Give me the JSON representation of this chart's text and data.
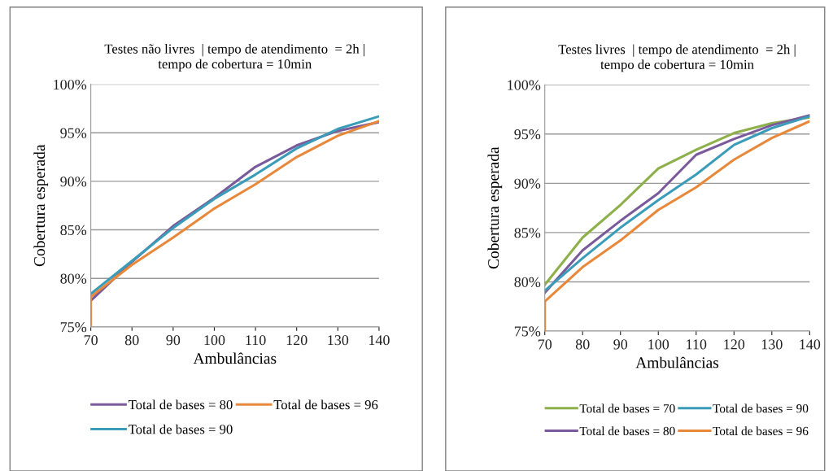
{
  "chart_data": [
    {
      "type": "line",
      "title": "Testes não livres  | tempo de atendimento  = 2h |\ntempo de cobertura = 10min",
      "xlabel": "Ambulâncias",
      "ylabel": "Cobertura esperada",
      "xlim": [
        70,
        140
      ],
      "xticks": [
        70,
        80,
        90,
        100,
        110,
        120,
        130,
        140
      ],
      "ylim": [
        75,
        100
      ],
      "yticks": [
        {
          "value": 75,
          "label": "75%"
        },
        {
          "value": 80,
          "label": "80%"
        },
        {
          "value": 85,
          "label": "85%"
        },
        {
          "value": 90,
          "label": "90%"
        },
        {
          "value": 95,
          "label": "95%"
        },
        {
          "value": 100,
          "label": "100%"
        }
      ],
      "grid": "y",
      "legend": "bottom",
      "marker": "none",
      "line_style": "solid",
      "series": [
        {
          "name": "Total de bases = 80",
          "color": "#7a5a9a",
          "x": [
            70,
            80,
            90,
            100,
            110,
            120,
            130,
            140
          ],
          "values": [
            77.7,
            81.7,
            85.4,
            88.3,
            91.5,
            93.7,
            95.2,
            96.1
          ]
        },
        {
          "name": "Total de bases = 90",
          "color": "#3a9cb8",
          "x": [
            70,
            80,
            90,
            100,
            110,
            120,
            130,
            140
          ],
          "values": [
            78.4,
            81.8,
            85.2,
            88.2,
            90.7,
            93.4,
            95.4,
            96.7
          ]
        },
        {
          "name": "Total de bases = 96",
          "color": "#e8883a",
          "x": [
            70,
            70,
            80,
            90,
            100,
            110,
            120,
            130,
            140
          ],
          "values": [
            75,
            78.1,
            81.4,
            84.2,
            87.2,
            89.7,
            92.5,
            94.7,
            96.2
          ]
        }
      ]
    },
    {
      "type": "line",
      "title": "Testes livres  | tempo de atendimento  = 2h |\ntempo de cobertura = 10min",
      "xlabel": "Ambulâncias",
      "ylabel": "Cobertura esperada",
      "xlim": [
        70,
        140
      ],
      "xticks": [
        70,
        80,
        90,
        100,
        110,
        120,
        130,
        140
      ],
      "ylim": [
        75,
        100
      ],
      "yticks": [
        {
          "value": 75,
          "label": "75%"
        },
        {
          "value": 80,
          "label": "80%"
        },
        {
          "value": 85,
          "label": "85%"
        },
        {
          "value": 90,
          "label": "90%"
        },
        {
          "value": 95,
          "label": "95%"
        },
        {
          "value": 100,
          "label": "100%"
        }
      ],
      "grid": "y",
      "legend": "bottom",
      "marker": "none",
      "line_style": "solid",
      "series": [
        {
          "name": "Total de bases = 70",
          "color": "#8db04a",
          "x": [
            70,
            80,
            90,
            100,
            110,
            120,
            130,
            140
          ],
          "values": [
            79.7,
            84.5,
            87.8,
            91.5,
            93.4,
            95.1,
            96.1,
            96.7
          ]
        },
        {
          "name": "Total de bases = 80",
          "color": "#7a5a9a",
          "x": [
            70,
            80,
            90,
            100,
            110,
            120,
            130,
            140
          ],
          "values": [
            78.9,
            83.2,
            86.2,
            89.0,
            92.9,
            94.5,
            95.9,
            96.9
          ]
        },
        {
          "name": "Total de bases = 90",
          "color": "#3a9cb8",
          "x": [
            70,
            80,
            90,
            100,
            110,
            120,
            130,
            140
          ],
          "values": [
            79.1,
            82.4,
            85.5,
            88.3,
            90.9,
            93.9,
            95.6,
            96.8
          ]
        },
        {
          "name": "Total de bases = 96",
          "color": "#e8883a",
          "x": [
            70,
            70,
            80,
            90,
            100,
            110,
            120,
            130,
            140
          ],
          "values": [
            75,
            78.0,
            81.5,
            84.2,
            87.3,
            89.6,
            92.4,
            94.6,
            96.3
          ]
        }
      ]
    }
  ]
}
